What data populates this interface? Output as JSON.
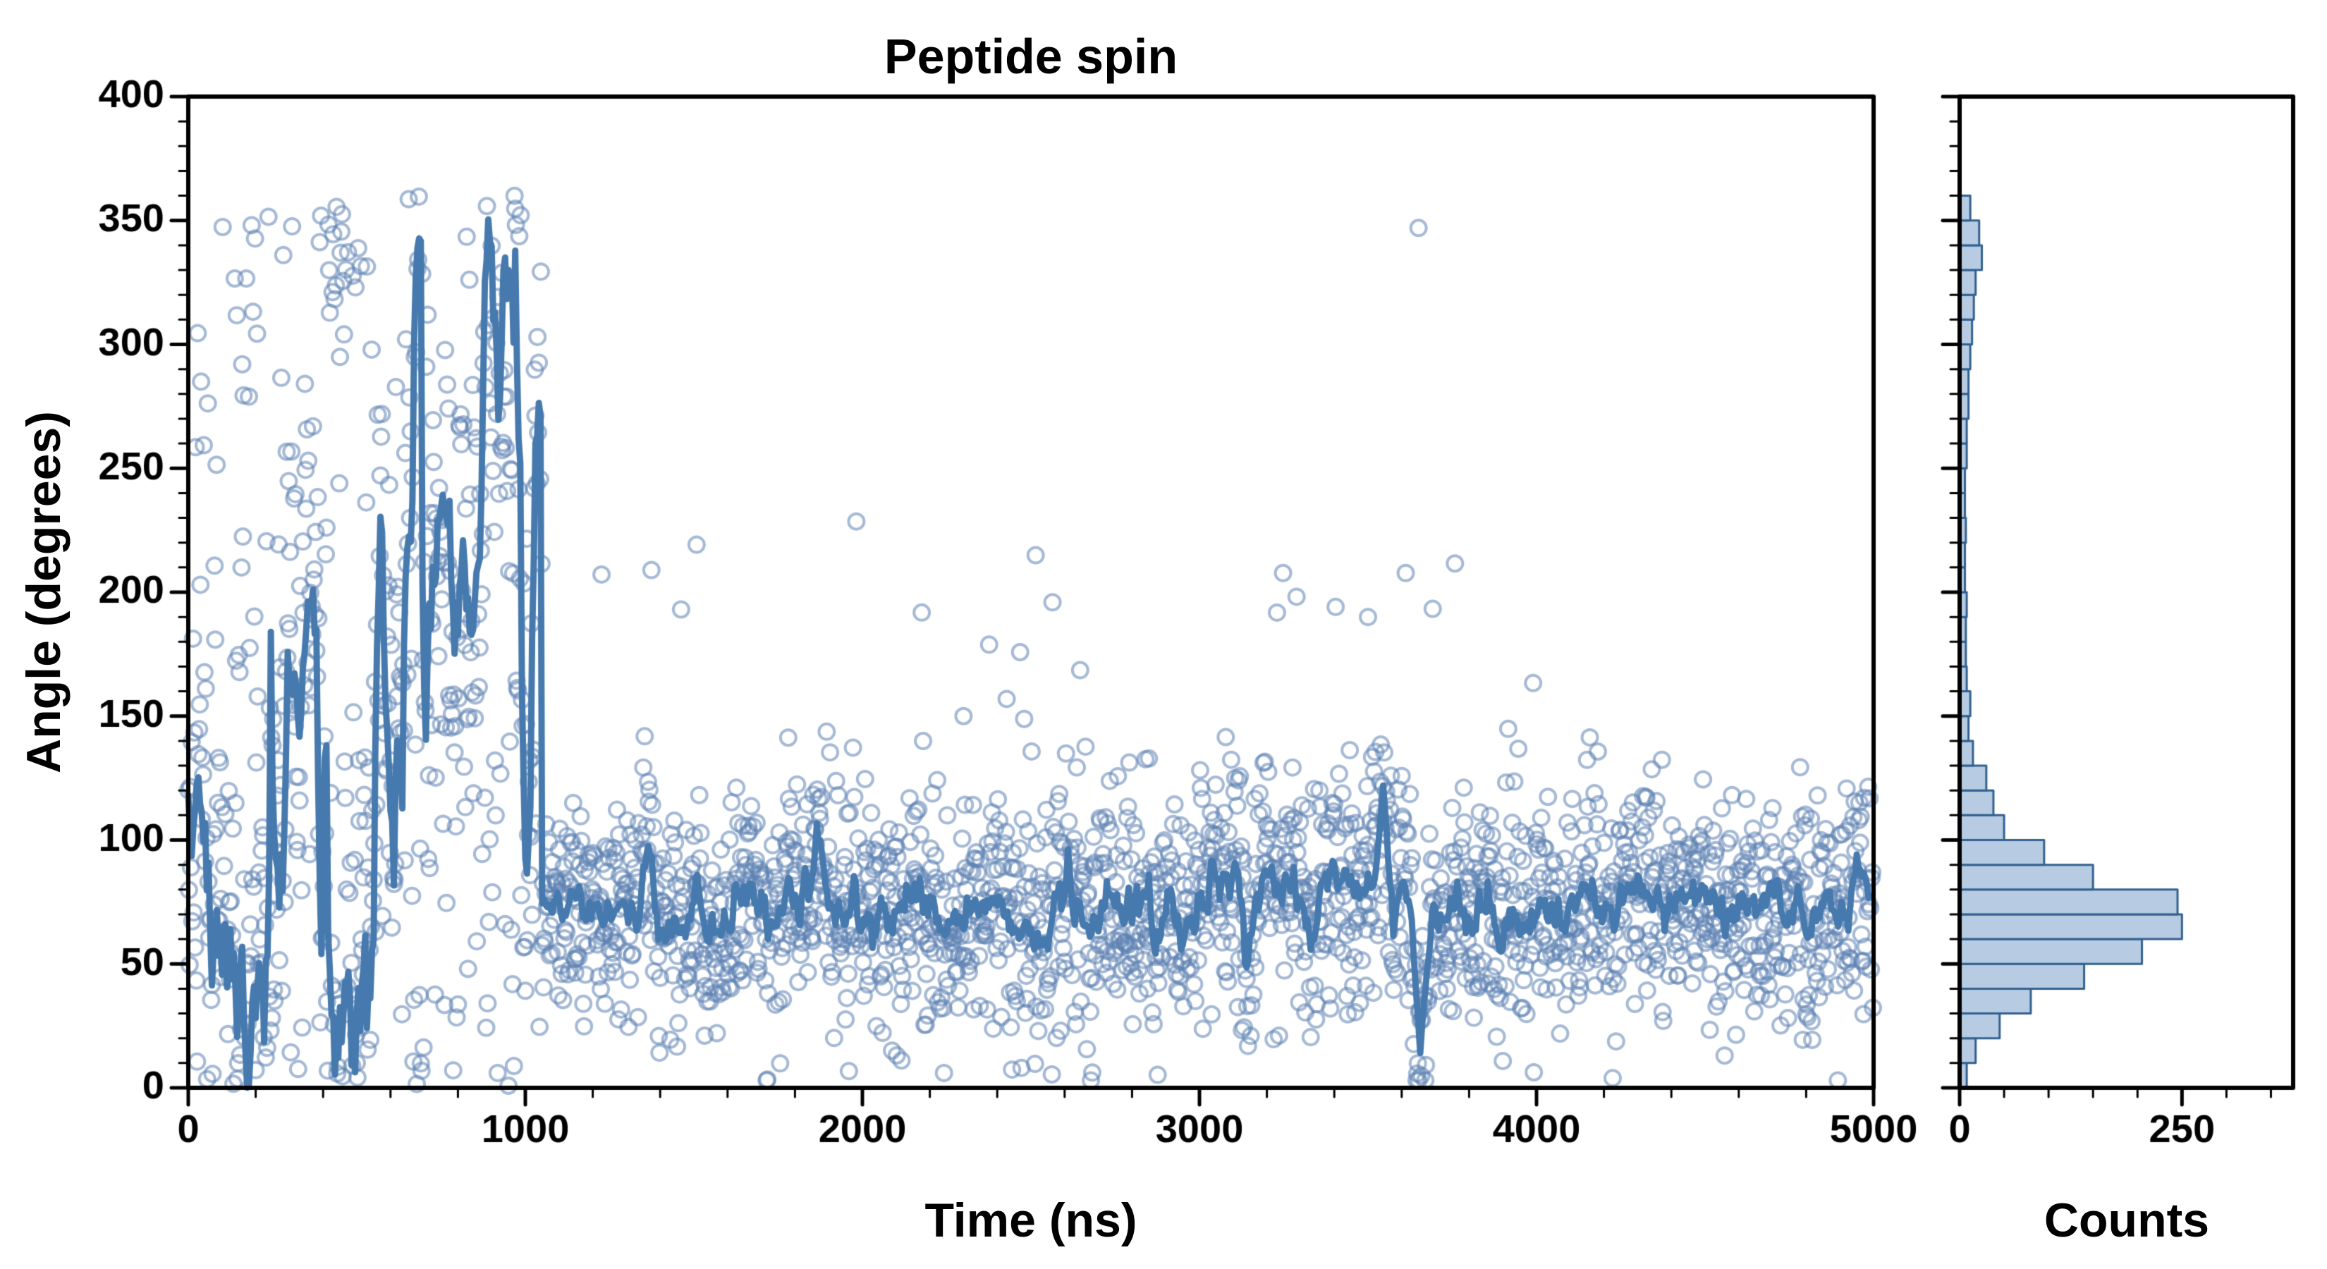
{
  "chart_data": {
    "type": "scatter",
    "title": "Peptide spin",
    "colors": {
      "line": "#4679ad",
      "marker_edge": "rgba(92,130,178,0.55)",
      "hist_fill": "rgba(179,201,224,0.95)",
      "hist_edge": "#33608f",
      "axis": "#000000"
    },
    "main": {
      "xlabel": "Time (ns)",
      "ylabel": "Angle (degrees)",
      "xlim": [
        0,
        5000
      ],
      "ylim": [
        0,
        400
      ],
      "xticks": [
        0,
        1000,
        2000,
        3000,
        4000,
        5000
      ],
      "yticks": [
        0,
        50,
        100,
        150,
        200,
        250,
        300,
        350,
        400
      ],
      "x_minor_step": 200,
      "y_minor_step": 10,
      "scatter_step_ns": 2,
      "line_step_ns": 5,
      "seed": 1337,
      "segments": [
        {
          "t_start": 0,
          "t_end": 1050,
          "mode": "chaotic",
          "scatter_sd": 45,
          "uniform_frac": 0.25,
          "jump_prob": 0.12,
          "chase_rate": 0.45,
          "walk_sd": 12
        },
        {
          "t_start": 1050,
          "t_end": 5000,
          "mode": "stable",
          "mean": 72,
          "scatter_sd": 24,
          "line_sd": 8,
          "line_phi": 0.88,
          "outlier_frac": 0.012
        }
      ],
      "events": [
        {
          "t": 3545,
          "value": 122,
          "width": 30
        },
        {
          "t": 3655,
          "value": 14,
          "width": 35
        }
      ],
      "outliers": [
        {
          "x": 3650,
          "y": 347
        },
        {
          "x": 3500,
          "y": 190
        },
        {
          "x": 2300,
          "y": 150
        }
      ]
    },
    "hist": {
      "xlabel": "Counts",
      "xlim": [
        0,
        375
      ],
      "xticks": [
        0,
        250
      ],
      "x_minor_step": 50,
      "bin_start": 0,
      "bin_width": 10,
      "counts": [
        8,
        18,
        45,
        80,
        140,
        205,
        250,
        245,
        150,
        95,
        50,
        38,
        30,
        15,
        10,
        12,
        8,
        7,
        7,
        8,
        6,
        6,
        7,
        6,
        6,
        8,
        8,
        10,
        10,
        12,
        14,
        16,
        18,
        25,
        22,
        12
      ]
    }
  }
}
